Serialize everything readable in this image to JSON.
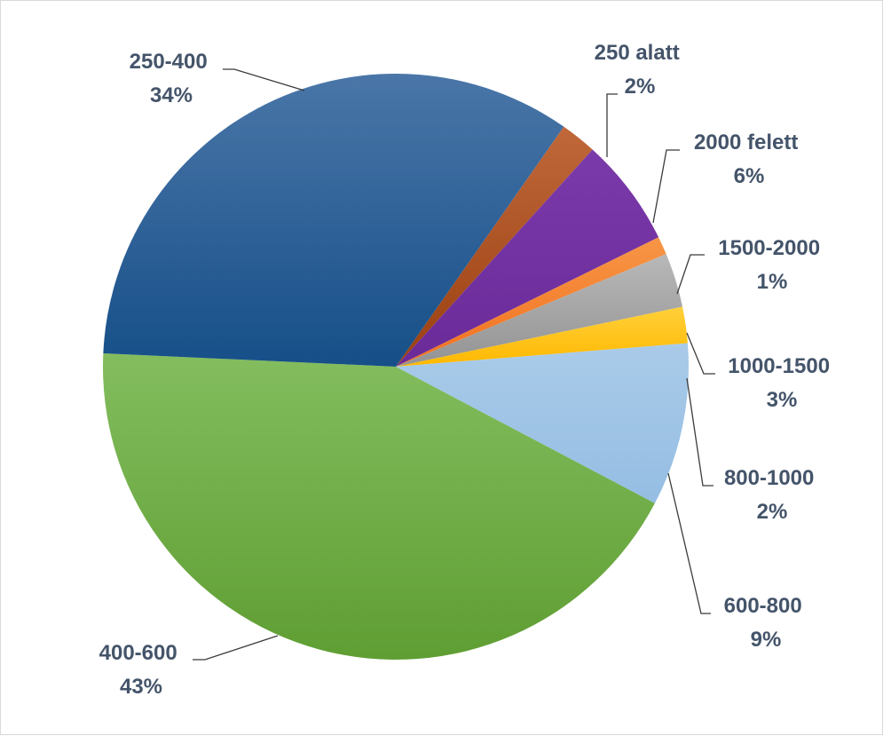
{
  "chart_data": {
    "type": "pie",
    "start_angle_deg": 35,
    "direction": "clockwise",
    "slices": [
      {
        "label": "250 alatt",
        "percent": "2%",
        "value": 2,
        "color": "#b5501e"
      },
      {
        "label": "2000 felett",
        "percent": "6%",
        "value": 6,
        "color": "#7030a0"
      },
      {
        "label": "1500-2000",
        "percent": "1%",
        "value": 1,
        "color": "#f5822a"
      },
      {
        "label": "1000-1500",
        "percent": "3%",
        "value": 3,
        "color": "#a6a6a6"
      },
      {
        "label": "800-1000",
        "percent": "2%",
        "value": 2,
        "color": "#ffc000"
      },
      {
        "label": "600-800",
        "percent": "9%",
        "value": 9,
        "color": "#9dc3e6"
      },
      {
        "label": "400-600",
        "percent": "43%",
        "value": 43,
        "color": "#70ad47"
      },
      {
        "label": "250-400",
        "percent": "34%",
        "value": 34,
        "color": "#2e6aa5"
      }
    ]
  }
}
